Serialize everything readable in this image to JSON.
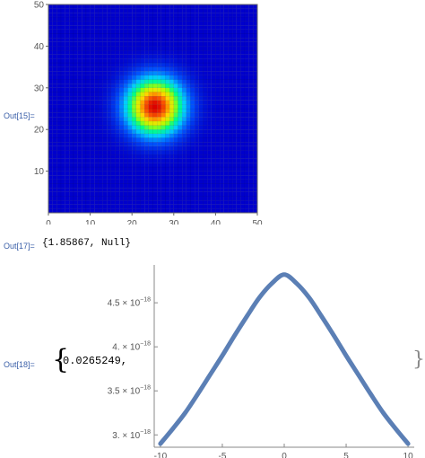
{
  "cells": {
    "out15": {
      "label": "Out[15]="
    },
    "out17": {
      "label": "Out[17]=",
      "value": "{1.85867, Null}"
    },
    "out18": {
      "label": "Out[18]=",
      "open_brace": "{",
      "value": "0.0265249,",
      "close_brace": "}"
    }
  },
  "chart_data": [
    {
      "type": "heatmap",
      "description_of_function": "2D Gaussian density centered near (25.5, 25.5)",
      "grid_size": 50,
      "center": [
        25.5,
        25.5
      ],
      "sigma": 4.5,
      "colormap": [
        "#0000cc",
        "#0055ff",
        "#00ccff",
        "#00ff88",
        "#aaff00",
        "#ffdd00",
        "#ff6600",
        "#dd0000"
      ],
      "xlim": [
        0,
        50
      ],
      "ylim": [
        0,
        50
      ],
      "xticks": [
        "0",
        "10",
        "20",
        "30",
        "40",
        "50"
      ],
      "yticks": [
        "10",
        "20",
        "30",
        "40",
        "50"
      ],
      "xlabel": "",
      "ylabel": "",
      "title": ""
    },
    {
      "type": "line",
      "xlim": [
        -10.5,
        10.5
      ],
      "ylim": [
        2.86,
        4.93
      ],
      "xticks": [
        "-10",
        "-5",
        "0",
        "5",
        "10"
      ],
      "yticks": [
        {
          "value": 3.0,
          "mantissa": "3.",
          "exp": "−18"
        },
        {
          "value": 3.5,
          "mantissa": "3.5",
          "exp": "−18"
        },
        {
          "value": 4.0,
          "mantissa": "4.",
          "exp": "−18"
        },
        {
          "value": 4.5,
          "mantissa": "4.5",
          "exp": "−18"
        }
      ],
      "ytick_multiplier": "× 10",
      "series": [
        {
          "color": "#5b7fb5",
          "x": [
            -10,
            -9,
            -8,
            -7,
            -6,
            -5,
            -4,
            -3,
            -2,
            -1,
            0,
            1,
            2,
            3,
            4,
            5,
            6,
            7,
            8,
            9,
            10
          ],
          "y": [
            2.9,
            3.07,
            3.25,
            3.46,
            3.68,
            3.9,
            4.13,
            4.35,
            4.56,
            4.72,
            4.82,
            4.72,
            4.56,
            4.35,
            4.13,
            3.9,
            3.68,
            3.46,
            3.25,
            3.07,
            2.9
          ]
        }
      ],
      "xlabel": "",
      "ylabel": "",
      "title": ""
    }
  ]
}
